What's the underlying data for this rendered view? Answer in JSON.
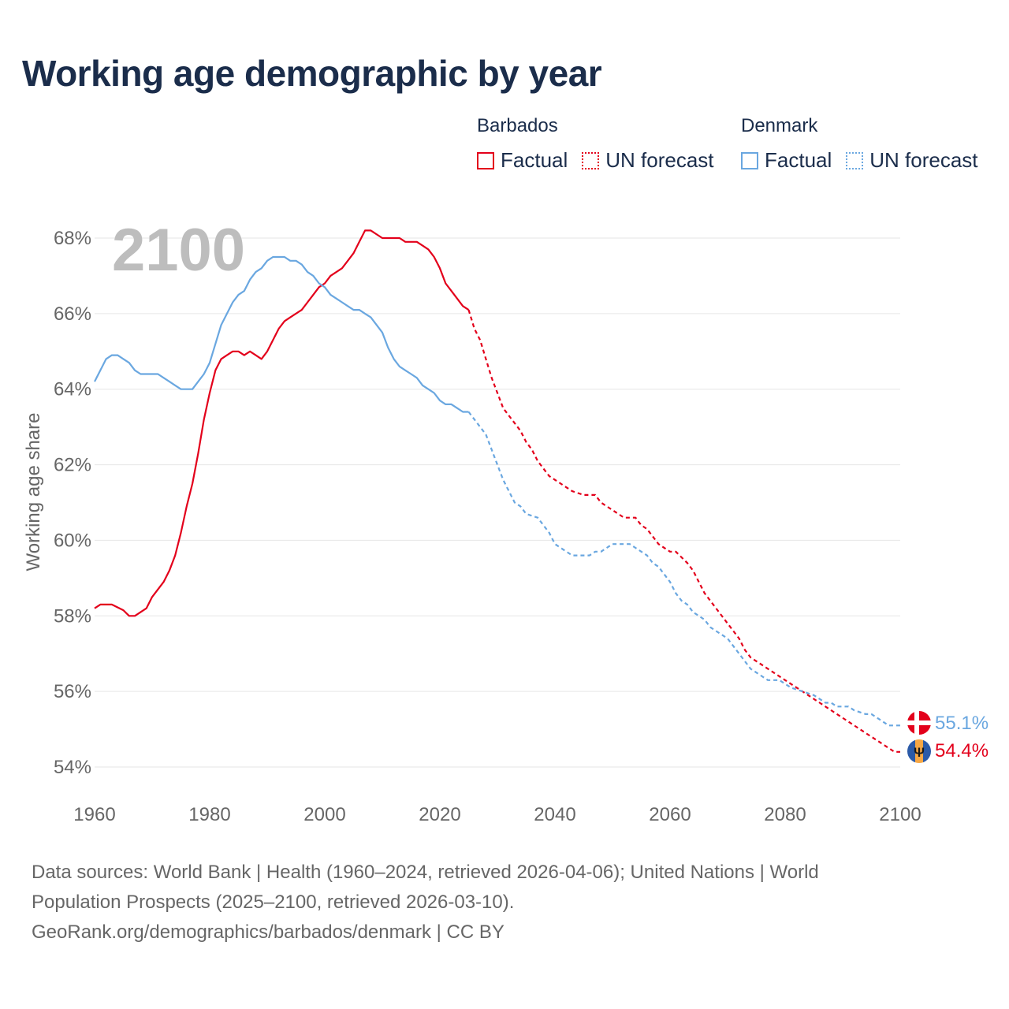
{
  "title": "Working age demographic by year",
  "legend": {
    "groups": [
      {
        "country": "Barbados",
        "color": "#e3001b",
        "factual_label": "Factual",
        "forecast_label": "UN forecast"
      },
      {
        "country": "Denmark",
        "color": "#6aa7e0",
        "factual_label": "Factual",
        "forecast_label": "UN forecast"
      }
    ]
  },
  "year_watermark": "2100",
  "chart_data": {
    "type": "line",
    "title": "Working age demographic by year",
    "xlabel": "",
    "ylabel": "Working age share",
    "xlim": [
      1960,
      2100
    ],
    "ylim": [
      54,
      68
    ],
    "x_ticks": [
      1960,
      1980,
      2000,
      2020,
      2040,
      2060,
      2080,
      2100
    ],
    "x_tick_labels": [
      "1960",
      "1980",
      "2000",
      "2020",
      "2040",
      "2060",
      "2080",
      "2100"
    ],
    "y_ticks": [
      54,
      56,
      58,
      60,
      62,
      64,
      66,
      68
    ],
    "y_tick_labels": [
      "54%",
      "56%",
      "58%",
      "60%",
      "62%",
      "64%",
      "66%",
      "68%"
    ],
    "grid": true,
    "forecast_start": 2024,
    "series": [
      {
        "name": "Barbados",
        "color": "#e3001b",
        "end_label": "54.4%",
        "points": [
          [
            1960,
            58.2
          ],
          [
            1961,
            58.3
          ],
          [
            1963,
            58.3
          ],
          [
            1965,
            58.15
          ],
          [
            1966,
            58.0
          ],
          [
            1967,
            58.0
          ],
          [
            1969,
            58.2
          ],
          [
            1970,
            58.5
          ],
          [
            1972,
            58.9
          ],
          [
            1973,
            59.2
          ],
          [
            1974,
            59.6
          ],
          [
            1975,
            60.2
          ],
          [
            1976,
            60.9
          ],
          [
            1977,
            61.5
          ],
          [
            1978,
            62.3
          ],
          [
            1979,
            63.2
          ],
          [
            1980,
            63.9
          ],
          [
            1981,
            64.5
          ],
          [
            1982,
            64.8
          ],
          [
            1983,
            64.9
          ],
          [
            1984,
            65.0
          ],
          [
            1985,
            65.0
          ],
          [
            1986,
            64.9
          ],
          [
            1987,
            65.0
          ],
          [
            1988,
            64.9
          ],
          [
            1989,
            64.8
          ],
          [
            1990,
            65.0
          ],
          [
            1991,
            65.3
          ],
          [
            1992,
            65.6
          ],
          [
            1993,
            65.8
          ],
          [
            1994,
            65.9
          ],
          [
            1996,
            66.1
          ],
          [
            1997,
            66.3
          ],
          [
            1998,
            66.5
          ],
          [
            1999,
            66.7
          ],
          [
            2000,
            66.8
          ],
          [
            2001,
            67.0
          ],
          [
            2003,
            67.2
          ],
          [
            2004,
            67.4
          ],
          [
            2005,
            67.6
          ],
          [
            2006,
            67.9
          ],
          [
            2007,
            68.2
          ],
          [
            2008,
            68.2
          ],
          [
            2010,
            68.0
          ],
          [
            2013,
            68.0
          ],
          [
            2014,
            67.9
          ],
          [
            2016,
            67.9
          ],
          [
            2017,
            67.8
          ],
          [
            2018,
            67.7
          ],
          [
            2019,
            67.5
          ],
          [
            2020,
            67.2
          ],
          [
            2021,
            66.8
          ],
          [
            2022,
            66.6
          ],
          [
            2023,
            66.4
          ],
          [
            2024,
            66.2
          ],
          [
            2025,
            66.1
          ],
          [
            2026,
            65.6
          ],
          [
            2027,
            65.3
          ],
          [
            2028,
            64.8
          ],
          [
            2029,
            64.3
          ],
          [
            2030,
            63.9
          ],
          [
            2031,
            63.5
          ],
          [
            2032,
            63.3
          ],
          [
            2033,
            63.1
          ],
          [
            2034,
            62.9
          ],
          [
            2035,
            62.6
          ],
          [
            2036,
            62.4
          ],
          [
            2037,
            62.1
          ],
          [
            2038,
            61.9
          ],
          [
            2039,
            61.7
          ],
          [
            2041,
            61.5
          ],
          [
            2042,
            61.4
          ],
          [
            2043,
            61.3
          ],
          [
            2045,
            61.2
          ],
          [
            2047,
            61.2
          ],
          [
            2048,
            61.0
          ],
          [
            2050,
            60.8
          ],
          [
            2051,
            60.7
          ],
          [
            2052,
            60.6
          ],
          [
            2054,
            60.6
          ],
          [
            2055,
            60.4
          ],
          [
            2056,
            60.3
          ],
          [
            2057,
            60.1
          ],
          [
            2058,
            59.9
          ],
          [
            2060,
            59.7
          ],
          [
            2061,
            59.7
          ],
          [
            2063,
            59.4
          ],
          [
            2064,
            59.2
          ],
          [
            2065,
            58.9
          ],
          [
            2066,
            58.6
          ],
          [
            2068,
            58.2
          ],
          [
            2070,
            57.8
          ],
          [
            2072,
            57.4
          ],
          [
            2073,
            57.1
          ],
          [
            2074,
            56.9
          ],
          [
            2076,
            56.7
          ],
          [
            2078,
            56.5
          ],
          [
            2080,
            56.3
          ],
          [
            2082,
            56.1
          ],
          [
            2084,
            55.9
          ],
          [
            2086,
            55.7
          ],
          [
            2088,
            55.5
          ],
          [
            2090,
            55.3
          ],
          [
            2092,
            55.1
          ],
          [
            2094,
            54.9
          ],
          [
            2096,
            54.7
          ],
          [
            2098,
            54.5
          ],
          [
            2099,
            54.4
          ],
          [
            2100,
            54.4
          ]
        ]
      },
      {
        "name": "Denmark",
        "color": "#6aa7e0",
        "end_label": "55.1%",
        "points": [
          [
            1960,
            64.2
          ],
          [
            1961,
            64.5
          ],
          [
            1962,
            64.8
          ],
          [
            1963,
            64.9
          ],
          [
            1964,
            64.9
          ],
          [
            1965,
            64.8
          ],
          [
            1966,
            64.7
          ],
          [
            1967,
            64.5
          ],
          [
            1968,
            64.4
          ],
          [
            1971,
            64.4
          ],
          [
            1972,
            64.3
          ],
          [
            1973,
            64.2
          ],
          [
            1974,
            64.1
          ],
          [
            1975,
            64.0
          ],
          [
            1977,
            64.0
          ],
          [
            1978,
            64.2
          ],
          [
            1979,
            64.4
          ],
          [
            1980,
            64.7
          ],
          [
            1981,
            65.2
          ],
          [
            1982,
            65.7
          ],
          [
            1983,
            66.0
          ],
          [
            1984,
            66.3
          ],
          [
            1985,
            66.5
          ],
          [
            1986,
            66.6
          ],
          [
            1987,
            66.9
          ],
          [
            1988,
            67.1
          ],
          [
            1989,
            67.2
          ],
          [
            1990,
            67.4
          ],
          [
            1991,
            67.5
          ],
          [
            1993,
            67.5
          ],
          [
            1994,
            67.4
          ],
          [
            1995,
            67.4
          ],
          [
            1996,
            67.3
          ],
          [
            1997,
            67.1
          ],
          [
            1998,
            67.0
          ],
          [
            1999,
            66.8
          ],
          [
            2000,
            66.7
          ],
          [
            2001,
            66.5
          ],
          [
            2002,
            66.4
          ],
          [
            2003,
            66.3
          ],
          [
            2004,
            66.2
          ],
          [
            2005,
            66.1
          ],
          [
            2006,
            66.1
          ],
          [
            2007,
            66.0
          ],
          [
            2008,
            65.9
          ],
          [
            2009,
            65.7
          ],
          [
            2010,
            65.5
          ],
          [
            2011,
            65.1
          ],
          [
            2012,
            64.8
          ],
          [
            2013,
            64.6
          ],
          [
            2014,
            64.5
          ],
          [
            2015,
            64.4
          ],
          [
            2016,
            64.3
          ],
          [
            2017,
            64.1
          ],
          [
            2018,
            64.0
          ],
          [
            2019,
            63.9
          ],
          [
            2020,
            63.7
          ],
          [
            2021,
            63.6
          ],
          [
            2022,
            63.6
          ],
          [
            2023,
            63.5
          ],
          [
            2024,
            63.4
          ],
          [
            2025,
            63.4
          ],
          [
            2026,
            63.2
          ],
          [
            2027,
            63.0
          ],
          [
            2028,
            62.8
          ],
          [
            2029,
            62.4
          ],
          [
            2030,
            62.0
          ],
          [
            2031,
            61.6
          ],
          [
            2032,
            61.3
          ],
          [
            2033,
            61.0
          ],
          [
            2034,
            60.9
          ],
          [
            2035,
            60.7
          ],
          [
            2037,
            60.6
          ],
          [
            2038,
            60.4
          ],
          [
            2039,
            60.2
          ],
          [
            2040,
            59.9
          ],
          [
            2042,
            59.7
          ],
          [
            2043,
            59.6
          ],
          [
            2046,
            59.6
          ],
          [
            2047,
            59.7
          ],
          [
            2048,
            59.7
          ],
          [
            2049,
            59.8
          ],
          [
            2050,
            59.9
          ],
          [
            2053,
            59.9
          ],
          [
            2054,
            59.8
          ],
          [
            2055,
            59.7
          ],
          [
            2056,
            59.6
          ],
          [
            2057,
            59.4
          ],
          [
            2058,
            59.3
          ],
          [
            2059,
            59.1
          ],
          [
            2060,
            58.9
          ],
          [
            2061,
            58.6
          ],
          [
            2062,
            58.4
          ],
          [
            2063,
            58.3
          ],
          [
            2064,
            58.1
          ],
          [
            2066,
            57.9
          ],
          [
            2067,
            57.7
          ],
          [
            2068,
            57.6
          ],
          [
            2070,
            57.4
          ],
          [
            2071,
            57.2
          ],
          [
            2072,
            57.0
          ],
          [
            2073,
            56.8
          ],
          [
            2074,
            56.6
          ],
          [
            2076,
            56.4
          ],
          [
            2077,
            56.3
          ],
          [
            2079,
            56.3
          ],
          [
            2081,
            56.1
          ],
          [
            2083,
            56.0
          ],
          [
            2085,
            55.9
          ],
          [
            2086,
            55.8
          ],
          [
            2087,
            55.7
          ],
          [
            2088,
            55.7
          ],
          [
            2089,
            55.6
          ],
          [
            2091,
            55.6
          ],
          [
            2092,
            55.5
          ],
          [
            2094,
            55.4
          ],
          [
            2095,
            55.4
          ],
          [
            2096,
            55.3
          ],
          [
            2097,
            55.2
          ],
          [
            2098,
            55.1
          ],
          [
            2100,
            55.1
          ]
        ]
      }
    ]
  },
  "footer": {
    "line1": "Data sources: World Bank | Health (1960–2024, retrieved 2026-04-06); United Nations | World",
    "line2": "Population Prospects (2025–2100, retrieved 2026-03-10).",
    "line3": "GeoRank.org/demographics/barbados/denmark | CC BY"
  },
  "colors": {
    "title": "#1b2d4b",
    "axis_text": "#666666",
    "grid": "#e6e6e6",
    "watermark": "#bdbdbd"
  }
}
